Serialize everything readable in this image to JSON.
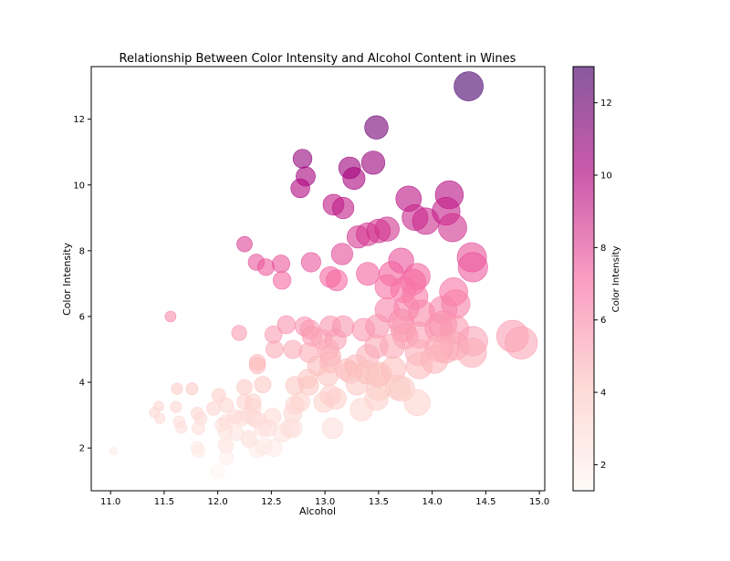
{
  "chart_data": {
    "type": "scatter",
    "title": "Relationship Between Color Intensity and Alcohol Content in Wines",
    "xlabel": "Alcohol",
    "ylabel": "Color Intensity",
    "xlim": [
      10.82,
      15.05
    ],
    "ylim": [
      0.7,
      13.6
    ],
    "xticks": [
      "11.0",
      "11.5",
      "12.0",
      "12.5",
      "13.0",
      "13.5",
      "14.0",
      "14.5",
      "15.0"
    ],
    "yticks": [
      "2",
      "4",
      "6",
      "8",
      "10",
      "12"
    ],
    "grid": false,
    "colormap": {
      "name": "RdPu",
      "low": "#fff7f3",
      "mid": "#f768a1",
      "high": "#49006a"
    },
    "colorbar": {
      "label": "Color Intensity",
      "range": [
        1.28,
        13.0
      ],
      "ticks": [
        "2",
        "4",
        "6",
        "8",
        "10",
        "12"
      ]
    },
    "points": [
      {
        "x": 14.34,
        "y": 13.0
      },
      {
        "x": 13.48,
        "y": 11.75
      },
      {
        "x": 12.79,
        "y": 10.8
      },
      {
        "x": 12.82,
        "y": 10.26
      },
      {
        "x": 13.23,
        "y": 10.52
      },
      {
        "x": 13.27,
        "y": 10.2
      },
      {
        "x": 13.45,
        "y": 10.68
      },
      {
        "x": 12.77,
        "y": 9.9
      },
      {
        "x": 13.08,
        "y": 9.4
      },
      {
        "x": 13.17,
        "y": 9.3
      },
      {
        "x": 13.78,
        "y": 9.58
      },
      {
        "x": 14.16,
        "y": 9.7
      },
      {
        "x": 13.84,
        "y": 9.01
      },
      {
        "x": 13.94,
        "y": 8.9
      },
      {
        "x": 14.13,
        "y": 9.2
      },
      {
        "x": 14.19,
        "y": 8.7
      },
      {
        "x": 13.31,
        "y": 8.42
      },
      {
        "x": 13.4,
        "y": 8.5
      },
      {
        "x": 13.5,
        "y": 8.6
      },
      {
        "x": 13.58,
        "y": 8.66
      },
      {
        "x": 12.25,
        "y": 8.2
      },
      {
        "x": 13.16,
        "y": 7.9
      },
      {
        "x": 12.36,
        "y": 7.65
      },
      {
        "x": 12.45,
        "y": 7.5
      },
      {
        "x": 12.59,
        "y": 7.6
      },
      {
        "x": 12.6,
        "y": 7.1
      },
      {
        "x": 12.87,
        "y": 7.65
      },
      {
        "x": 13.05,
        "y": 7.2
      },
      {
        "x": 13.11,
        "y": 7.1
      },
      {
        "x": 13.4,
        "y": 7.3
      },
      {
        "x": 13.71,
        "y": 7.7
      },
      {
        "x": 13.62,
        "y": 7.3
      },
      {
        "x": 13.82,
        "y": 7.05
      },
      {
        "x": 13.86,
        "y": 7.22
      },
      {
        "x": 13.58,
        "y": 6.9
      },
      {
        "x": 13.73,
        "y": 6.8
      },
      {
        "x": 13.84,
        "y": 6.6
      },
      {
        "x": 14.2,
        "y": 6.75
      },
      {
        "x": 14.37,
        "y": 7.8
      },
      {
        "x": 14.38,
        "y": 7.5
      },
      {
        "x": 14.22,
        "y": 6.38
      },
      {
        "x": 14.1,
        "y": 6.2
      },
      {
        "x": 13.76,
        "y": 6.25
      },
      {
        "x": 13.58,
        "y": 6.2
      },
      {
        "x": 13.9,
        "y": 6.1
      },
      {
        "x": 11.56,
        "y": 6.0
      },
      {
        "x": 13.05,
        "y": 5.7
      },
      {
        "x": 12.2,
        "y": 5.5
      },
      {
        "x": 12.52,
        "y": 5.45
      },
      {
        "x": 12.64,
        "y": 5.75
      },
      {
        "x": 12.81,
        "y": 5.7
      },
      {
        "x": 12.86,
        "y": 5.6
      },
      {
        "x": 12.88,
        "y": 5.4
      },
      {
        "x": 12.97,
        "y": 5.3
      },
      {
        "x": 13.1,
        "y": 5.3
      },
      {
        "x": 13.17,
        "y": 5.7
      },
      {
        "x": 13.36,
        "y": 5.6
      },
      {
        "x": 13.49,
        "y": 5.7
      },
      {
        "x": 13.71,
        "y": 5.85
      },
      {
        "x": 13.73,
        "y": 5.6
      },
      {
        "x": 13.75,
        "y": 5.4
      },
      {
        "x": 13.88,
        "y": 5.43
      },
      {
        "x": 14.06,
        "y": 5.65
      },
      {
        "x": 14.1,
        "y": 5.75
      },
      {
        "x": 14.21,
        "y": 5.6
      },
      {
        "x": 14.21,
        "y": 5.1
      },
      {
        "x": 14.12,
        "y": 5.0
      },
      {
        "x": 14.06,
        "y": 5.04
      },
      {
        "x": 14.38,
        "y": 5.25
      },
      {
        "x": 14.37,
        "y": 4.9
      },
      {
        "x": 14.75,
        "y": 5.4
      },
      {
        "x": 14.83,
        "y": 5.2
      },
      {
        "x": 12.53,
        "y": 5.0
      },
      {
        "x": 12.7,
        "y": 5.0
      },
      {
        "x": 12.85,
        "y": 4.9
      },
      {
        "x": 12.93,
        "y": 4.5
      },
      {
        "x": 13.03,
        "y": 5.0
      },
      {
        "x": 13.05,
        "y": 4.8
      },
      {
        "x": 13.05,
        "y": 4.6
      },
      {
        "x": 13.4,
        "y": 4.8
      },
      {
        "x": 13.48,
        "y": 5.1
      },
      {
        "x": 13.63,
        "y": 5.1
      },
      {
        "x": 13.87,
        "y": 4.9
      },
      {
        "x": 13.88,
        "y": 4.5
      },
      {
        "x": 14.02,
        "y": 4.68
      },
      {
        "x": 12.37,
        "y": 4.6
      },
      {
        "x": 12.37,
        "y": 4.5
      },
      {
        "x": 12.42,
        "y": 3.93
      },
      {
        "x": 12.72,
        "y": 3.9
      },
      {
        "x": 12.84,
        "y": 4.1
      },
      {
        "x": 12.85,
        "y": 3.9
      },
      {
        "x": 12.99,
        "y": 3.4
      },
      {
        "x": 13.03,
        "y": 4.2
      },
      {
        "x": 13.05,
        "y": 3.6
      },
      {
        "x": 13.2,
        "y": 4.38
      },
      {
        "x": 13.24,
        "y": 4.3
      },
      {
        "x": 13.29,
        "y": 4.5
      },
      {
        "x": 13.3,
        "y": 3.95
      },
      {
        "x": 13.39,
        "y": 4.3
      },
      {
        "x": 13.49,
        "y": 4.2
      },
      {
        "x": 13.5,
        "y": 3.8
      },
      {
        "x": 13.51,
        "y": 4.25
      },
      {
        "x": 13.64,
        "y": 4.4
      },
      {
        "x": 13.68,
        "y": 3.84
      },
      {
        "x": 13.72,
        "y": 3.8
      },
      {
        "x": 13.1,
        "y": 3.5
      },
      {
        "x": 13.48,
        "y": 3.5
      },
      {
        "x": 13.34,
        "y": 3.17
      },
      {
        "x": 13.86,
        "y": 3.38
      },
      {
        "x": 11.62,
        "y": 3.8
      },
      {
        "x": 11.76,
        "y": 3.8
      },
      {
        "x": 12.01,
        "y": 3.6
      },
      {
        "x": 12.25,
        "y": 3.85
      },
      {
        "x": 12.25,
        "y": 3.4
      },
      {
        "x": 12.33,
        "y": 3.4
      },
      {
        "x": 12.33,
        "y": 3.25
      },
      {
        "x": 12.72,
        "y": 3.3
      },
      {
        "x": 12.77,
        "y": 3.4
      },
      {
        "x": 12.7,
        "y": 3.05
      },
      {
        "x": 11.45,
        "y": 3.27
      },
      {
        "x": 11.41,
        "y": 3.08
      },
      {
        "x": 11.46,
        "y": 2.9
      },
      {
        "x": 11.61,
        "y": 3.25
      },
      {
        "x": 11.64,
        "y": 2.8
      },
      {
        "x": 11.66,
        "y": 2.62
      },
      {
        "x": 11.81,
        "y": 3.05
      },
      {
        "x": 11.84,
        "y": 2.9
      },
      {
        "x": 11.82,
        "y": 2.6
      },
      {
        "x": 11.96,
        "y": 3.2
      },
      {
        "x": 12.04,
        "y": 2.7
      },
      {
        "x": 12.08,
        "y": 3.3
      },
      {
        "x": 12.08,
        "y": 2.8
      },
      {
        "x": 12.07,
        "y": 2.5
      },
      {
        "x": 12.16,
        "y": 2.95
      },
      {
        "x": 12.17,
        "y": 2.45
      },
      {
        "x": 12.22,
        "y": 2.9
      },
      {
        "x": 12.29,
        "y": 3.0
      },
      {
        "x": 12.29,
        "y": 2.3
      },
      {
        "x": 12.34,
        "y": 2.9
      },
      {
        "x": 12.37,
        "y": 2.85
      },
      {
        "x": 12.42,
        "y": 2.6
      },
      {
        "x": 12.47,
        "y": 2.6
      },
      {
        "x": 12.51,
        "y": 2.95
      },
      {
        "x": 12.52,
        "y": 2.0
      },
      {
        "x": 12.6,
        "y": 2.45
      },
      {
        "x": 12.67,
        "y": 2.6
      },
      {
        "x": 12.7,
        "y": 2.6
      },
      {
        "x": 12.37,
        "y": 1.95
      },
      {
        "x": 12.43,
        "y": 2.05
      },
      {
        "x": 11.81,
        "y": 2.0
      },
      {
        "x": 11.82,
        "y": 1.9
      },
      {
        "x": 12.07,
        "y": 2.1
      },
      {
        "x": 12.08,
        "y": 2.05
      },
      {
        "x": 12.08,
        "y": 1.7
      },
      {
        "x": 11.03,
        "y": 1.9
      },
      {
        "x": 12.0,
        "y": 1.28
      },
      {
        "x": 13.07,
        "y": 2.6
      },
      {
        "x": 12.29,
        "y": 2.25
      }
    ]
  }
}
